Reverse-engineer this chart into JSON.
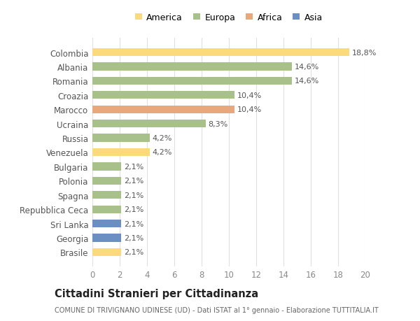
{
  "categories": [
    "Colombia",
    "Albania",
    "Romania",
    "Croazia",
    "Marocco",
    "Ucraina",
    "Russia",
    "Venezuela",
    "Bulgaria",
    "Polonia",
    "Spagna",
    "Repubblica Ceca",
    "Sri Lanka",
    "Georgia",
    "Brasile"
  ],
  "values": [
    18.8,
    14.6,
    14.6,
    10.4,
    10.4,
    8.3,
    4.2,
    4.2,
    2.1,
    2.1,
    2.1,
    2.1,
    2.1,
    2.1,
    2.1
  ],
  "labels": [
    "18,8%",
    "14,6%",
    "14,6%",
    "10,4%",
    "10,4%",
    "8,3%",
    "4,2%",
    "4,2%",
    "2,1%",
    "2,1%",
    "2,1%",
    "2,1%",
    "2,1%",
    "2,1%",
    "2,1%"
  ],
  "colors": [
    "#FADA7A",
    "#A8C08A",
    "#A8C08A",
    "#A8C08A",
    "#E8A87C",
    "#A8C08A",
    "#A8C08A",
    "#FADA7A",
    "#A8C08A",
    "#A8C08A",
    "#A8C08A",
    "#A8C08A",
    "#6B8FC2",
    "#6B8FC2",
    "#FADA7A"
  ],
  "legend": {
    "America": "#FADA7A",
    "Europa": "#A8C08A",
    "Africa": "#E8A87C",
    "Asia": "#6B8FC2"
  },
  "xlim": [
    0,
    20
  ],
  "xticks": [
    0,
    2,
    4,
    6,
    8,
    10,
    12,
    14,
    16,
    18,
    20
  ],
  "title": "Cittadini Stranieri per Cittadinanza",
  "subtitle": "COMUNE DI TRIVIGNANO UDINESE (UD) - Dati ISTAT al 1° gennaio - Elaborazione TUTTITALIA.IT",
  "background_color": "#ffffff",
  "grid_color": "#e0e0e0",
  "bar_height": 0.55
}
